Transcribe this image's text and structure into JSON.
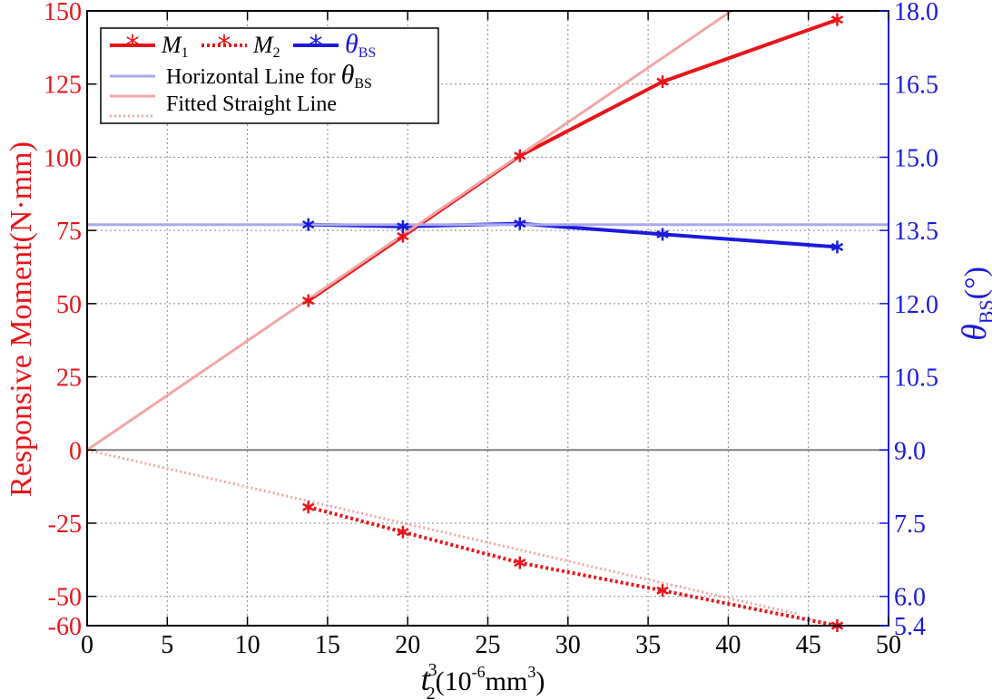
{
  "colors": {
    "m1": "#e8141a",
    "m2": "#e8141a",
    "theta": "#1a1adc",
    "horizontal": "#a8a8f0",
    "fitted": "#f2a6a6",
    "zero_line": "#808080",
    "grid": "#888888"
  },
  "chart_data": {
    "type": "line",
    "xlabel": {
      "base": "t",
      "sub": "2",
      "sup": "3",
      "unit": "(10",
      "unit_sup1": "-6",
      "unit_mid": "mm",
      "unit_sup2": "3",
      "unit_end": ")"
    },
    "ylabel_left": "Responsive Moment(N·mm)",
    "ylabel_right": {
      "symbol": "θ",
      "sub": "BS",
      "unit": "(°)"
    },
    "xlim": [
      0,
      50
    ],
    "ylim_left": [
      -60,
      150
    ],
    "ylim_right": [
      5.4,
      18.0
    ],
    "x_ticks": [
      0,
      5,
      10,
      15,
      20,
      25,
      30,
      35,
      40,
      45,
      50
    ],
    "y_ticks_left": [
      -60,
      -50,
      -25,
      0,
      25,
      50,
      75,
      100,
      125,
      150
    ],
    "y_ticks_right": [
      5.4,
      6.0,
      7.5,
      9.0,
      10.5,
      12.0,
      13.5,
      15.0,
      16.5,
      18.0
    ],
    "y_tick_labels_right": [
      "5.4",
      "6.0",
      "7.5",
      "9.0",
      "10.5",
      "12.0",
      "13.5",
      "15.0",
      "16.5",
      "18.0"
    ],
    "grid": true,
    "series": [
      {
        "name": "M1",
        "axis": "left",
        "style": "solid",
        "marker": "asterisk",
        "x": [
          13.8,
          19.7,
          27.0,
          35.9,
          46.8
        ],
        "y": [
          51.0,
          73.0,
          100.5,
          125.8,
          147.0
        ]
      },
      {
        "name": "M2",
        "axis": "left",
        "style": "dotted",
        "marker": "asterisk",
        "x": [
          13.8,
          19.7,
          27.0,
          35.9,
          46.8
        ],
        "y": [
          -19.5,
          -28.0,
          -38.5,
          -48.0,
          -60.0
        ]
      },
      {
        "name": "θBS",
        "axis": "right",
        "style": "solid",
        "marker": "asterisk",
        "x": [
          13.8,
          19.7,
          27.0,
          35.9,
          46.8
        ],
        "y": [
          13.62,
          13.58,
          13.64,
          13.42,
          13.16
        ]
      },
      {
        "name": "Horizontal Line for θBS",
        "axis": "right",
        "style": "solid-light",
        "x": [
          0,
          50
        ],
        "y": [
          13.62,
          13.62
        ]
      },
      {
        "name": "Fitted Straight Line",
        "axis": "left",
        "style": "solid-light",
        "x": [
          0,
          40.2
        ],
        "y": [
          0,
          150
        ]
      },
      {
        "name": "Fitted Straight Line",
        "axis": "left",
        "style": "dotted-light",
        "x": [
          0,
          44.3
        ],
        "y": [
          0,
          -56
        ]
      }
    ],
    "legend": {
      "position": "top-left",
      "row1": [
        {
          "symbol": "M",
          "sub": "1"
        },
        {
          "symbol": "M",
          "sub": "2"
        },
        {
          "symbol": "θ",
          "sub": "BS"
        }
      ],
      "row2_text": "Horizontal Line for ",
      "row2_symbol": "θ",
      "row2_sub": "BS",
      "row3_text": "Fitted Straight Line"
    }
  }
}
